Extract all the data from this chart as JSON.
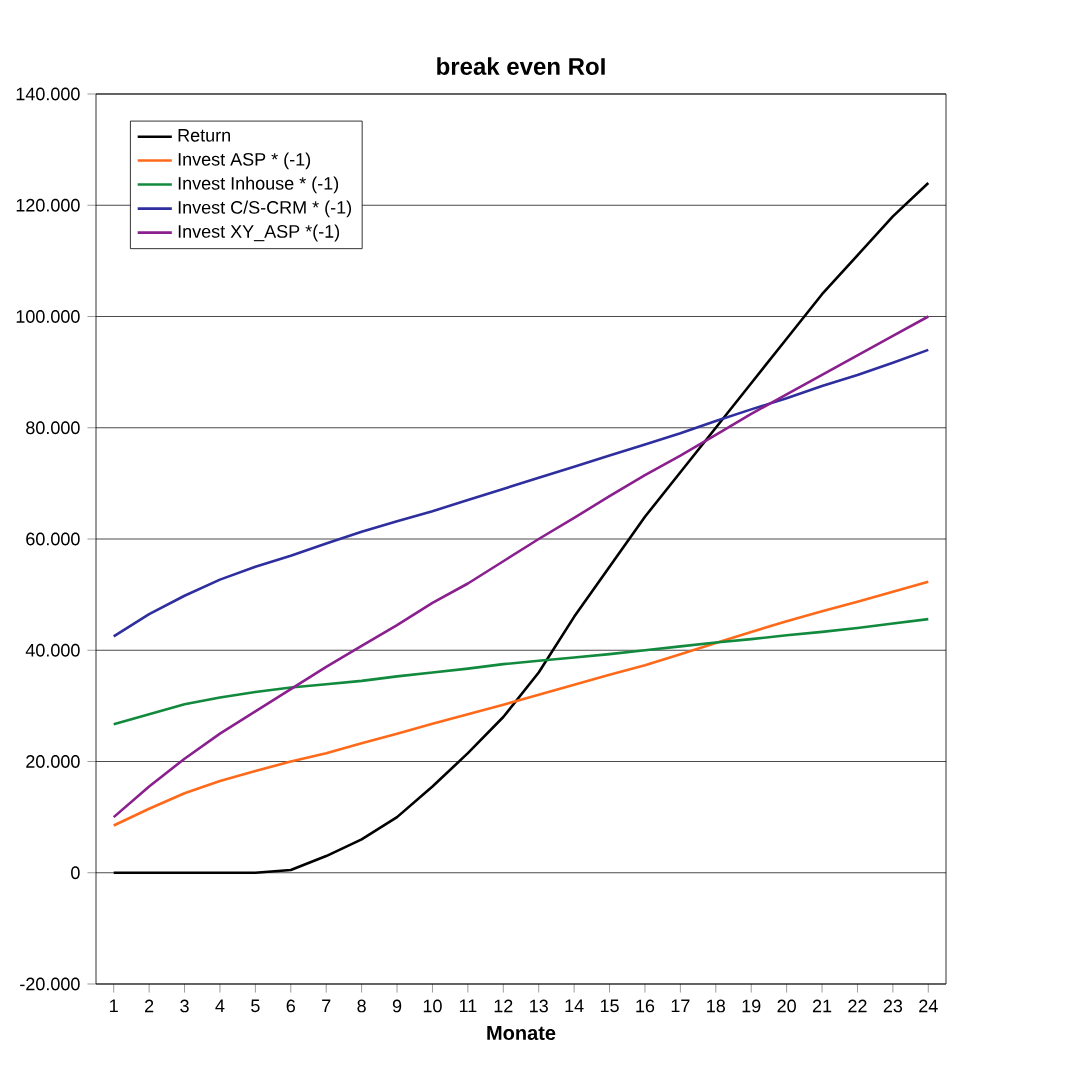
{
  "chart_data": {
    "type": "line",
    "title": "break even RoI",
    "xlabel": "Monate",
    "categories": [
      "1",
      "2",
      "3",
      "4",
      "5",
      "6",
      "7",
      "8",
      "9",
      "10",
      "11",
      "12",
      "13",
      "14",
      "15",
      "16",
      "17",
      "18",
      "19",
      "20",
      "21",
      "22",
      "23",
      "24"
    ],
    "ylim": [
      -20000,
      140000
    ],
    "yticks": [
      {
        "value": -20000,
        "label": "-20.000"
      },
      {
        "value": 0,
        "label": "0"
      },
      {
        "value": 20000,
        "label": "20.000"
      },
      {
        "value": 40000,
        "label": "40.000"
      },
      {
        "value": 60000,
        "label": "60.000"
      },
      {
        "value": 80000,
        "label": "80.000"
      },
      {
        "value": 100000,
        "label": "100.000"
      },
      {
        "value": 120000,
        "label": "120.000"
      },
      {
        "value": 140000,
        "label": "140.000"
      }
    ],
    "grid": "y",
    "legend": "top left",
    "marker": "none",
    "line_style": "solid",
    "series": [
      {
        "name": "Return",
        "color": "#000000",
        "values": [
          0,
          0,
          0,
          0,
          0,
          500,
          3000,
          6000,
          10000,
          15500,
          21500,
          28000,
          36000,
          46000,
          55000,
          64000,
          72000,
          80000,
          88000,
          96000,
          104000,
          111000,
          118000,
          124000
        ]
      },
      {
        "name": "Invest ASP * (-1)",
        "color": "#ff6a1a",
        "values": [
          8500,
          11500,
          14300,
          16500,
          18300,
          20000,
          21500,
          23300,
          25000,
          26800,
          28500,
          30200,
          32000,
          33800,
          35600,
          37300,
          39300,
          41300,
          43300,
          45200,
          47000,
          48700,
          50500,
          52300
        ]
      },
      {
        "name": "Invest Inhouse * (-1)",
        "color": "#128a3e",
        "values": [
          26700,
          28500,
          30300,
          31500,
          32500,
          33300,
          33900,
          34500,
          35300,
          36000,
          36700,
          37500,
          38100,
          38700,
          39300,
          40000,
          40700,
          41400,
          42000,
          42700,
          43300,
          44000,
          44800,
          45600
        ]
      },
      {
        "name": "Invest C/S-CRM * (-1)",
        "color": "#2e2e9e",
        "values": [
          42500,
          46500,
          49800,
          52700,
          55000,
          57000,
          59200,
          61300,
          63200,
          65000,
          67000,
          69000,
          71000,
          73000,
          75000,
          77000,
          79000,
          81200,
          83300,
          85300,
          87500,
          89500,
          91700,
          94000
        ]
      },
      {
        "name": "Invest XY_ASP *(-1)",
        "color": "#8a1f8e",
        "values": [
          10000,
          15500,
          20500,
          25000,
          29000,
          33000,
          37000,
          40800,
          44500,
          48500,
          52000,
          56000,
          60000,
          63800,
          67700,
          71500,
          75000,
          78700,
          82500,
          86000,
          89500,
          93000,
          96500,
          100000
        ]
      }
    ]
  }
}
